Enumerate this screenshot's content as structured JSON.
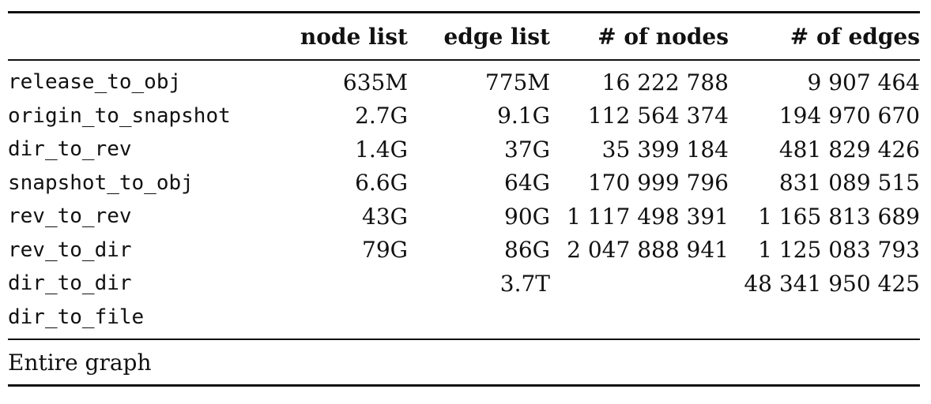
{
  "table": {
    "headers": [
      "",
      "node list",
      "edge list",
      "# of nodes",
      "# of edges"
    ],
    "rows": [
      [
        "release_to_obj",
        "635M",
        "775M",
        "16 222 788",
        "9 907 464"
      ],
      [
        "origin_to_snapshot",
        "2.7G",
        "9.1G",
        "112 564 374",
        "194 970 670"
      ],
      [
        "dir_to_rev",
        "1.4G",
        "37G",
        "35 399 184",
        "481 829 426"
      ],
      [
        "snapshot_to_obj",
        "6.6G",
        "64G",
        "170 999 796",
        "831 089 515"
      ],
      [
        "rev_to_rev",
        "43G",
        "90G",
        "1 117 498 391",
        "1 165 813 689"
      ],
      [
        "rev_to_dir",
        "79G",
        "86G",
        "2 047 888 941",
        "1 125 083 793"
      ],
      [
        "dir_to_dir",
        "",
        "3.7T",
        "",
        "48 341 950 425"
      ],
      [
        "dir_to_file",
        "",
        "",
        "",
        ""
      ]
    ],
    "footer": [
      "Entire graph",
      "",
      "",
      "",
      ""
    ]
  }
}
